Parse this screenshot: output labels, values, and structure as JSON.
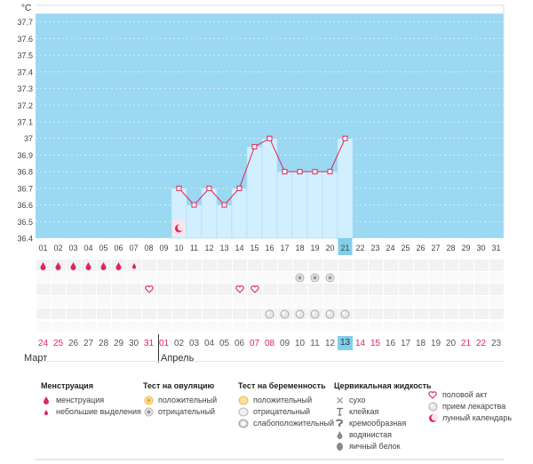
{
  "chart_data": {
    "type": "line",
    "unit": "°C",
    "y_ticks": [
      "37.7",
      "37.6",
      "37.5",
      "37.4",
      "37.3",
      "37.2",
      "37.1",
      "37",
      "36.9",
      "36.8",
      "36.7",
      "36.6",
      "36.5",
      "36.4"
    ],
    "ylim": [
      36.4,
      37.8
    ],
    "x_days": [
      "01",
      "02",
      "03",
      "04",
      "05",
      "06",
      "07",
      "08",
      "09",
      "10",
      "11",
      "12",
      "13",
      "14",
      "15",
      "16",
      "17",
      "18",
      "19",
      "20",
      "21",
      "22",
      "23",
      "24",
      "25",
      "26",
      "27",
      "28",
      "29",
      "30",
      "31"
    ],
    "today": "21",
    "series": [
      {
        "x": [
          "10",
          "11",
          "12",
          "13",
          "14",
          "15",
          "16",
          "17",
          "18",
          "19",
          "20",
          "21"
        ],
        "values": [
          36.7,
          36.6,
          36.7,
          36.6,
          36.7,
          36.95,
          37.0,
          36.8,
          36.8,
          36.8,
          36.8,
          37.0
        ]
      }
    ],
    "moon_day": "10",
    "grid": true
  },
  "markers": {
    "menstruation": [
      "01",
      "02",
      "03",
      "04",
      "05",
      "06"
    ],
    "light_spotting": [
      "07"
    ],
    "ovulation_negative": [
      "18",
      "19",
      "20"
    ],
    "intercourse": [
      "08",
      "14",
      "15"
    ],
    "medication": [
      "16",
      "17",
      "18",
      "19",
      "20",
      "21"
    ]
  },
  "cycle_days": [
    {
      "label": "24",
      "red": true
    },
    {
      "label": "25",
      "red": true
    },
    {
      "label": "26"
    },
    {
      "label": "27"
    },
    {
      "label": "28"
    },
    {
      "label": "29"
    },
    {
      "label": "30"
    },
    {
      "label": "31",
      "red": true
    },
    {
      "label": "01",
      "red": true
    },
    {
      "label": "02"
    },
    {
      "label": "03"
    },
    {
      "label": "04"
    },
    {
      "label": "05"
    },
    {
      "label": "06"
    },
    {
      "label": "07",
      "red": true
    },
    {
      "label": "08",
      "red": true
    },
    {
      "label": "09"
    },
    {
      "label": "10"
    },
    {
      "label": "11"
    },
    {
      "label": "12"
    },
    {
      "label": "13",
      "highlight": true
    },
    {
      "label": "14",
      "red": true
    },
    {
      "label": "15",
      "red": true
    },
    {
      "label": "16"
    },
    {
      "label": "17"
    },
    {
      "label": "18"
    },
    {
      "label": "19"
    },
    {
      "label": "20"
    },
    {
      "label": "21",
      "red": true
    },
    {
      "label": "22",
      "red": true
    },
    {
      "label": "23"
    }
  ],
  "months": {
    "first": "Март",
    "second": "Апрель"
  },
  "legend": {
    "menstruation": {
      "title": "Менструация",
      "items": [
        "менструация",
        "небольшие выделения"
      ]
    },
    "ovulation": {
      "title": "Тест на овуляцию",
      "items": [
        "положительный",
        "отрицательный"
      ]
    },
    "pregnancy": {
      "title": "Тест на беременность",
      "items": [
        "положительный",
        "отрицательный",
        "слабоположительный"
      ]
    },
    "cervical": {
      "title": "Цервикальная жидкость",
      "items": [
        "сухо",
        "клейкая",
        "кремообразная",
        "водянистая",
        "яичный белок"
      ]
    },
    "other": {
      "items": [
        "половой акт",
        "прием лекарства",
        "лунный календарь"
      ]
    }
  },
  "colors": {
    "band": "#9bd8f1",
    "bar": "#d2efff",
    "bar_stroke": "#a8dcf2",
    "line": "#e0245e",
    "accent_red": "#e0245e",
    "today": "#7fd0ea"
  }
}
